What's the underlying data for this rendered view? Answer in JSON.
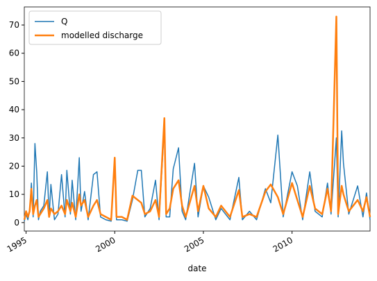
{
  "chart_data": {
    "type": "line",
    "x_label": "date",
    "x": [
      1994.9,
      1995.0,
      1995.1,
      1995.2,
      1995.3,
      1995.4,
      1995.5,
      1995.6,
      1995.7,
      1995.8,
      1996.0,
      1996.2,
      1996.3,
      1996.4,
      1996.6,
      1996.8,
      1997.0,
      1997.2,
      1997.3,
      1997.5,
      1997.6,
      1997.8,
      1998.0,
      1998.1,
      1998.3,
      1998.5,
      1998.8,
      1999.0,
      1999.2,
      1999.5,
      1999.8,
      2000.0,
      2000.1,
      2000.4,
      2000.7,
      2001.0,
      2001.3,
      2001.5,
      2001.7,
      2002.0,
      2002.3,
      2002.5,
      2002.8,
      2002.9,
      2003.1,
      2003.3,
      2003.6,
      2003.8,
      2004.0,
      2004.5,
      2004.7,
      2005.0,
      2005.3,
      2005.7,
      2006.0,
      2006.5,
      2007.0,
      2007.2,
      2007.6,
      2008.0,
      2008.5,
      2008.8,
      2009.2,
      2009.5,
      2010.0,
      2010.3,
      2010.6,
      2011.0,
      2011.3,
      2011.7,
      2012.0,
      2012.2,
      2012.5,
      2012.6,
      2012.8,
      2012.9,
      2013.2,
      2013.7,
      2014.0,
      2014.2,
      2014.4
    ],
    "series": [
      {
        "name": "Q",
        "color": "#1f77b4",
        "width": 1.5,
        "values": [
          0.5,
          3,
          1,
          4,
          14,
          2,
          28,
          18,
          1,
          4,
          6,
          18,
          2,
          13.5,
          1,
          3,
          17,
          2,
          18.5,
          3,
          15,
          1,
          23,
          4,
          11,
          1,
          17,
          18,
          2,
          1,
          0.5,
          22,
          1,
          1,
          0.5,
          8,
          18.5,
          18.5,
          2,
          5,
          15,
          1,
          34,
          2,
          2,
          19,
          26.5,
          4,
          1,
          21,
          2,
          13,
          9,
          1,
          5,
          1,
          16,
          1,
          4,
          1,
          12,
          7,
          31,
          2,
          18,
          13,
          1,
          18,
          4,
          2,
          14,
          3,
          30,
          2,
          32.5,
          21,
          3,
          13,
          2,
          10.5,
          1
        ]
      },
      {
        "name": "modelled discharge",
        "color": "#ff7f0e",
        "width": 2.5,
        "values": [
          1,
          4,
          2,
          4,
          12,
          3,
          6,
          8,
          2,
          3,
          5,
          8,
          2,
          5,
          3,
          4,
          6,
          3,
          8,
          4,
          7,
          2,
          10,
          6,
          8,
          2,
          6,
          8,
          3,
          2,
          1,
          23,
          2,
          2,
          1,
          9.5,
          8,
          7,
          3,
          4,
          8,
          2,
          37,
          3,
          5,
          12,
          15,
          6,
          2,
          13,
          4,
          13,
          5,
          2,
          6,
          2,
          11.5,
          2,
          3,
          2,
          11,
          13.5,
          9,
          3,
          14,
          8,
          2,
          13,
          5,
          3,
          12,
          4,
          73,
          3,
          13,
          10,
          4,
          8,
          4,
          9,
          2
        ]
      }
    ],
    "xlim": [
      1994.9,
      2014.4
    ],
    "xticks": [
      1995,
      2000,
      2005,
      2010
    ],
    "ylim": [
      -3,
      76.4
    ],
    "yticks": [
      0,
      10,
      20,
      30,
      40,
      50,
      60,
      70
    ],
    "legend": "upper left"
  }
}
